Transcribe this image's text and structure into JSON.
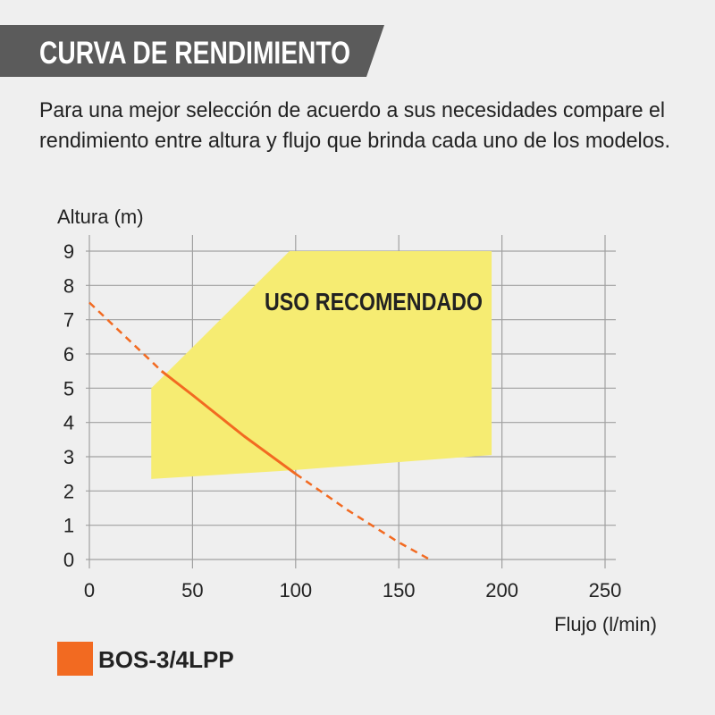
{
  "header": {
    "title": "CURVA DE RENDIMIENTO",
    "description_line1": "Para una mejor selección de acuerdo a sus necesidades compare el",
    "description_line2": "rendimiento entre altura y flujo que brinda cada uno de los modelos."
  },
  "colors": {
    "banner": "#5b5b5b",
    "background": "#efefef",
    "grid": "#a0a0a0",
    "recommended_zone": "#f6ec72",
    "series": "#f26a21",
    "text": "#222222"
  },
  "chart_data": {
    "type": "line",
    "xlabel": "Flujo (l/min)",
    "ylabel": "Altura (m)",
    "xlim": [
      0,
      250
    ],
    "ylim": [
      0,
      9
    ],
    "xticks": [
      "0",
      "50",
      "100",
      "150",
      "200",
      "250"
    ],
    "yticks": [
      "0",
      "1",
      "2",
      "3",
      "4",
      "5",
      "6",
      "7",
      "8",
      "9"
    ],
    "grid": true,
    "recommended_zone": {
      "label": "USO RECOMENDADO",
      "points": [
        [
          30,
          2.35
        ],
        [
          30,
          5.0
        ],
        [
          97,
          9.0
        ],
        [
          195,
          9.0
        ],
        [
          195,
          3.05
        ],
        [
          97,
          2.6
        ]
      ]
    },
    "series": [
      {
        "name": "BOS-3/4LPP",
        "dashed_before": [
          [
            0,
            7.5
          ],
          [
            35,
            5.5
          ]
        ],
        "solid": [
          [
            35,
            5.5
          ],
          [
            50,
            4.8
          ],
          [
            75,
            3.6
          ],
          [
            100,
            2.5
          ]
        ],
        "dashed_after": [
          [
            100,
            2.5
          ],
          [
            125,
            1.45
          ],
          [
            150,
            0.5
          ],
          [
            165,
            0.0
          ]
        ]
      }
    ],
    "legend": {
      "placement": "bottom-left"
    }
  }
}
